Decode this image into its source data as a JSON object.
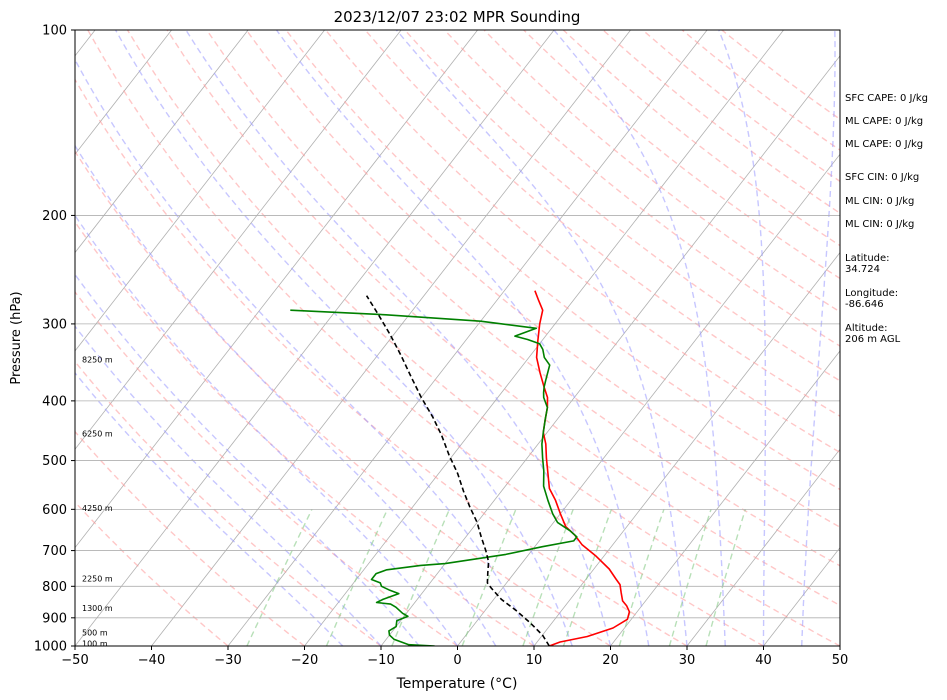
{
  "chart_data": {
    "type": "skew-t sounding",
    "title": "2023/12/07 23:02 MPR Sounding",
    "xlabel": "Temperature (°C)",
    "ylabel": "Pressure (hPa)",
    "xlim": [
      -50,
      50
    ],
    "ylim": [
      1000,
      100
    ],
    "y_scale": "log",
    "x_ticks": [
      -50,
      -40,
      -30,
      -20,
      -10,
      0,
      10,
      20,
      30,
      40,
      50
    ],
    "y_ticks": [
      100,
      200,
      300,
      400,
      500,
      600,
      700,
      800,
      900,
      1000
    ],
    "grid": true,
    "series": [
      {
        "color": "#ff0000",
        "style": "solid",
        "points": [
          {
            "x": 12,
            "y": 1000
          },
          {
            "x": 13,
            "y": 985
          },
          {
            "x": 16,
            "y": 965
          },
          {
            "x": 18.5,
            "y": 935
          },
          {
            "x": 19.5,
            "y": 905
          },
          {
            "x": 19,
            "y": 880
          },
          {
            "x": 18,
            "y": 860
          },
          {
            "x": 17,
            "y": 845
          },
          {
            "x": 16,
            "y": 820
          },
          {
            "x": 15,
            "y": 795
          },
          {
            "x": 14,
            "y": 780
          },
          {
            "x": 12,
            "y": 750
          },
          {
            "x": 9,
            "y": 715
          },
          {
            "x": 6,
            "y": 685
          },
          {
            "x": 4,
            "y": 660
          },
          {
            "x": 2,
            "y": 640
          },
          {
            "x": 0,
            "y": 610
          },
          {
            "x": -2,
            "y": 580
          },
          {
            "x": -4,
            "y": 555
          },
          {
            "x": -6,
            "y": 520
          },
          {
            "x": -7.5,
            "y": 495
          },
          {
            "x": -9,
            "y": 470
          },
          {
            "x": -10.5,
            "y": 450
          },
          {
            "x": -11.5,
            "y": 430
          },
          {
            "x": -12.5,
            "y": 410
          },
          {
            "x": -13.5,
            "y": 395
          },
          {
            "x": -15,
            "y": 380
          },
          {
            "x": -17,
            "y": 360
          },
          {
            "x": -19,
            "y": 340
          },
          {
            "x": -20.5,
            "y": 320
          },
          {
            "x": -22,
            "y": 300
          },
          {
            "x": -23,
            "y": 285
          },
          {
            "x": -24.5,
            "y": 275
          },
          {
            "x": -26,
            "y": 265
          }
        ]
      },
      {
        "color": "#008000",
        "style": "solid",
        "points": [
          {
            "x": -3,
            "y": 1000
          },
          {
            "x": -6.5,
            "y": 995
          },
          {
            "x": -9,
            "y": 975
          },
          {
            "x": -10,
            "y": 960
          },
          {
            "x": -10.5,
            "y": 945
          },
          {
            "x": -10,
            "y": 930
          },
          {
            "x": -10.5,
            "y": 910
          },
          {
            "x": -9.5,
            "y": 895
          },
          {
            "x": -10.5,
            "y": 885
          },
          {
            "x": -12,
            "y": 865
          },
          {
            "x": -13,
            "y": 855
          },
          {
            "x": -15,
            "y": 850
          },
          {
            "x": -14.5,
            "y": 840
          },
          {
            "x": -13,
            "y": 822
          },
          {
            "x": -14.5,
            "y": 812
          },
          {
            "x": -16,
            "y": 800
          },
          {
            "x": -16.5,
            "y": 790
          },
          {
            "x": -18,
            "y": 780
          },
          {
            "x": -18,
            "y": 763
          },
          {
            "x": -17,
            "y": 752
          },
          {
            "x": -13,
            "y": 740
          },
          {
            "x": -10,
            "y": 735
          },
          {
            "x": -3,
            "y": 710
          },
          {
            "x": 1,
            "y": 690
          },
          {
            "x": 4.5,
            "y": 675
          },
          {
            "x": 4.5,
            "y": 665
          },
          {
            "x": 3,
            "y": 650
          },
          {
            "x": 0.5,
            "y": 630
          },
          {
            "x": -1,
            "y": 610
          },
          {
            "x": -3,
            "y": 580
          },
          {
            "x": -5,
            "y": 550
          },
          {
            "x": -6.5,
            "y": 520
          },
          {
            "x": -8,
            "y": 495
          },
          {
            "x": -9.5,
            "y": 470
          },
          {
            "x": -10.5,
            "y": 450
          },
          {
            "x": -11.5,
            "y": 430
          },
          {
            "x": -12.5,
            "y": 410
          },
          {
            "x": -14,
            "y": 395
          },
          {
            "x": -14.5,
            "y": 388
          },
          {
            "x": -15,
            "y": 380
          },
          {
            "x": -15.5,
            "y": 370
          },
          {
            "x": -16,
            "y": 360
          },
          {
            "x": -16.5,
            "y": 350
          },
          {
            "x": -18,
            "y": 340
          },
          {
            "x": -19,
            "y": 330
          },
          {
            "x": -20,
            "y": 323
          },
          {
            "x": -22,
            "y": 318
          },
          {
            "x": -24,
            "y": 314
          },
          {
            "x": -22,
            "y": 305
          },
          {
            "x": -30,
            "y": 297
          },
          {
            "x": -43,
            "y": 290
          },
          {
            "x": -56,
            "y": 285
          }
        ]
      },
      {
        "color": "#000000",
        "style": "dashed",
        "points": [
          {
            "x": 12,
            "y": 1000
          },
          {
            "x": 10,
            "y": 960
          },
          {
            "x": 7,
            "y": 915
          },
          {
            "x": 4,
            "y": 875
          },
          {
            "x": 1,
            "y": 840
          },
          {
            "x": -1.5,
            "y": 805
          },
          {
            "x": -2.5,
            "y": 790
          },
          {
            "x": -3.5,
            "y": 760
          },
          {
            "x": -4.5,
            "y": 730
          },
          {
            "x": -6,
            "y": 700
          },
          {
            "x": -8,
            "y": 665
          },
          {
            "x": -10,
            "y": 630
          },
          {
            "x": -12.5,
            "y": 595
          },
          {
            "x": -15,
            "y": 560
          },
          {
            "x": -17.5,
            "y": 525
          },
          {
            "x": -20.5,
            "y": 490
          },
          {
            "x": -23.5,
            "y": 455
          },
          {
            "x": -26.5,
            "y": 425
          },
          {
            "x": -30,
            "y": 395
          },
          {
            "x": -33.5,
            "y": 365
          },
          {
            "x": -37,
            "y": 337
          },
          {
            "x": -40.5,
            "y": 312
          },
          {
            "x": -44,
            "y": 290
          },
          {
            "x": -47.5,
            "y": 270
          }
        ]
      }
    ],
    "height_labels": [
      {
        "text": "100 m",
        "p": 991
      },
      {
        "text": "500 m",
        "p": 950
      },
      {
        "text": "1300 m",
        "p": 867
      },
      {
        "text": "2250 m",
        "p": 777
      },
      {
        "text": "4250 m",
        "p": 597
      },
      {
        "text": "6250 m",
        "p": 452
      },
      {
        "text": "8250 m",
        "p": 343
      }
    ],
    "background": {
      "isotherm_color": "#b0b0b0",
      "dry_adiabat_color": "#ff9999",
      "moist_adiabat_color": "#9999ff",
      "mixing_ratio_color": "#88cc88"
    }
  },
  "side_panel": [
    "SFC CAPE: 0 J/kg",
    "ML CAPE: 0 J/kg",
    "ML CAPE: 0 J/kg",
    "SFC CIN: 0 J/kg",
    "ML CIN: 0 J/kg",
    "ML CIN: 0 J/kg",
    "Latitude:",
    "34.724",
    "Longitude:",
    "-86.646",
    "Altitude:",
    "206 m AGL"
  ]
}
